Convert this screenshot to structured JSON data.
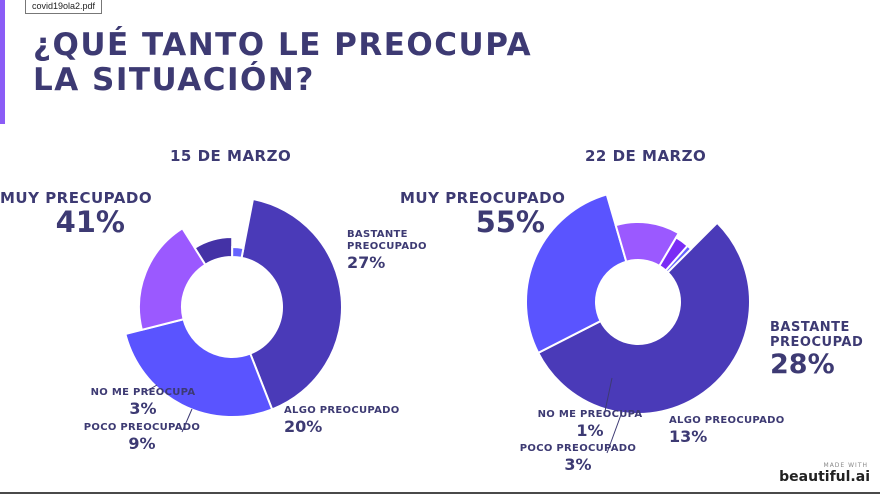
{
  "header": {
    "file_tab": "covid19ola2.pdf",
    "title_line1": "¿QUÉ TANTO LE PREOCUPA",
    "title_line2": "LA SITUACIÓN?"
  },
  "colors": {
    "muy_preocupado": "#4a3ab8",
    "bastante_preocupado": "#5a54ff",
    "algo_preocupado": "#9b59ff",
    "poco_preocupado": "#4432a6",
    "no_me_preocupa": "#6663ff",
    "no_me_preocupa_b": "#7a2cf5",
    "text": "#3d3a73"
  },
  "chart_data": [
    {
      "type": "pie",
      "title": "15 DE MARZO",
      "slices": [
        {
          "label": "MUY PRECUPADO",
          "value": 41,
          "display": "41%"
        },
        {
          "label": "BASTANTE PREOCUPADO",
          "value": 27,
          "display": "27%"
        },
        {
          "label": "ALGO PREOCUPADO",
          "value": 20,
          "display": "20%"
        },
        {
          "label": "POCO PREOCUPADO",
          "value": 9,
          "display": "9%"
        },
        {
          "label": "NO ME PREOCUPA",
          "value": 3,
          "display": "3%"
        }
      ]
    },
    {
      "type": "pie",
      "title": "22 DE MARZO",
      "slices": [
        {
          "label": "MUY PREOCUPADO",
          "value": 55,
          "display": "55%"
        },
        {
          "label": "BASTANTE PREOCUPAD",
          "value": 28,
          "display": "28%"
        },
        {
          "label": "ALGO PREOCUPADO",
          "value": 13,
          "display": "13%"
        },
        {
          "label": "POCO PREOCUPADO",
          "value": 3,
          "display": "3%"
        },
        {
          "label": "NO ME PREOCUPA",
          "value": 1,
          "display": "1%"
        }
      ]
    }
  ],
  "footer": {
    "made_with": "MADE WITH",
    "brand": "beautiful.ai"
  }
}
